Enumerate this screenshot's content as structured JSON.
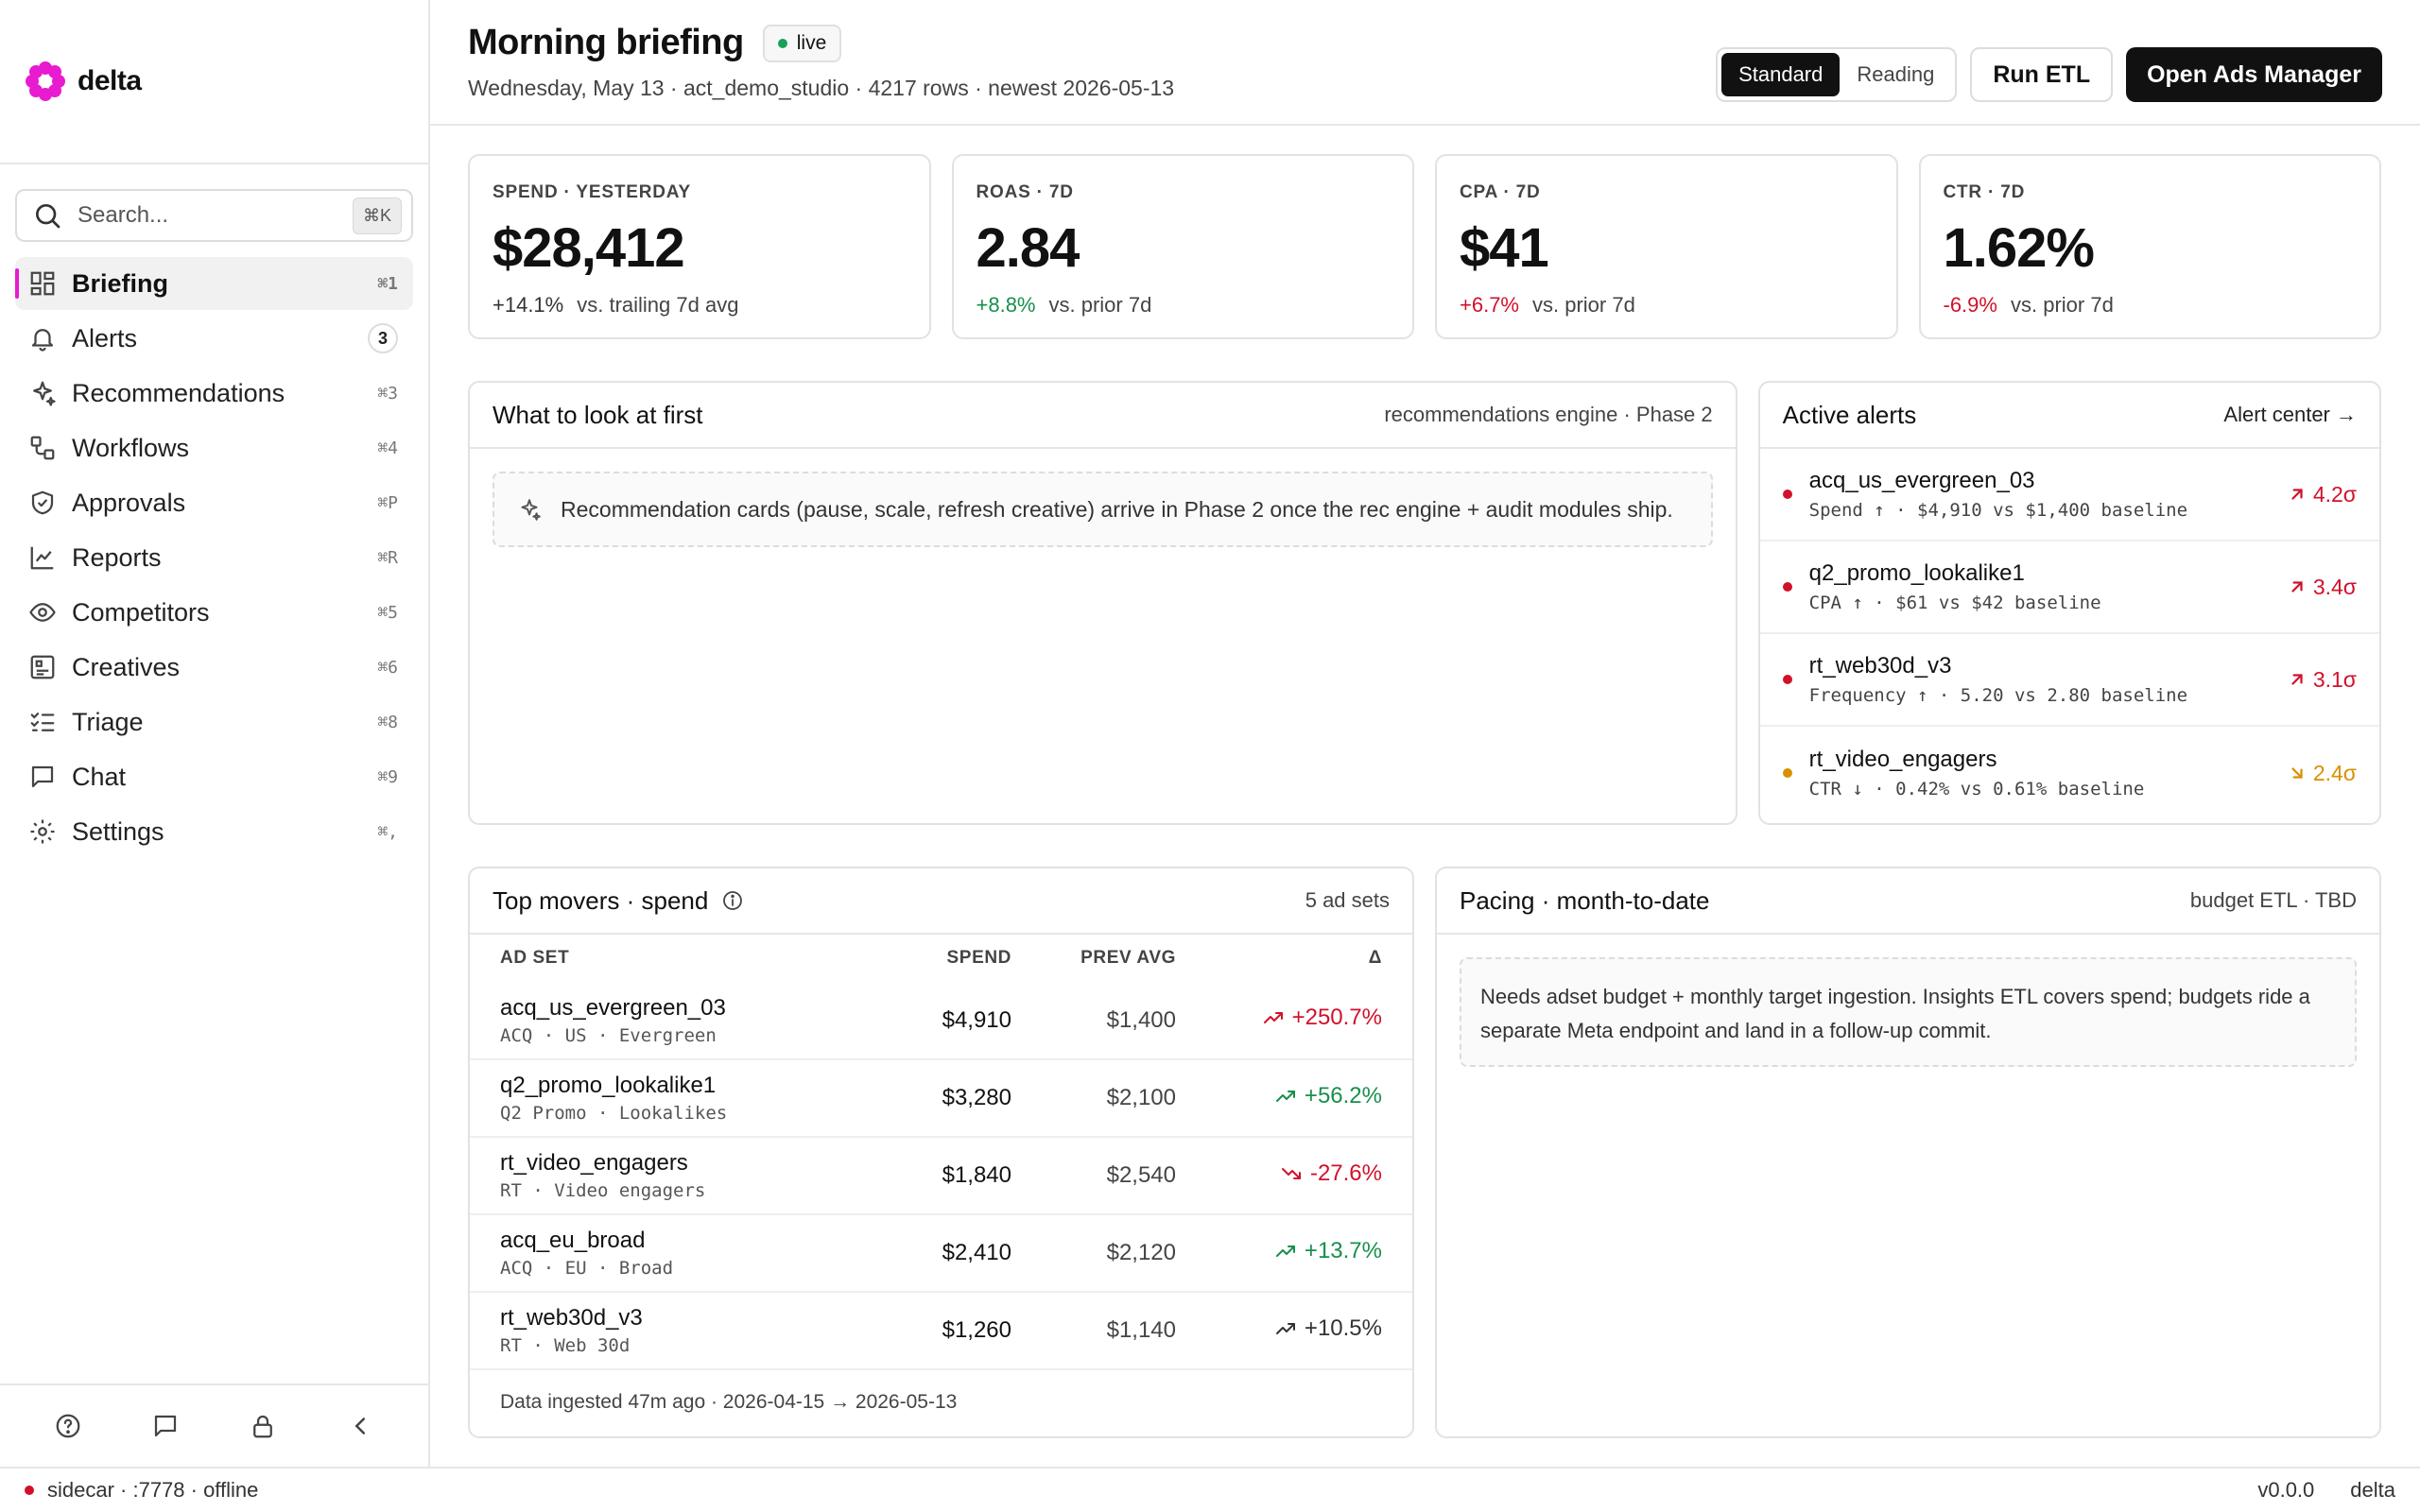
{
  "brand": {
    "name": "delta",
    "accent": "#e81bd0"
  },
  "search": {
    "placeholder": "Search...",
    "shortcut": "⌘K"
  },
  "sidebar": {
    "items": [
      {
        "label": "Briefing",
        "hint": "⌘1",
        "icon": "layout-grid-icon",
        "active": true
      },
      {
        "label": "Alerts",
        "badge": "3",
        "icon": "bell-icon"
      },
      {
        "label": "Recommendations",
        "hint": "⌘3",
        "icon": "sparkles-icon"
      },
      {
        "label": "Workflows",
        "hint": "⌘4",
        "icon": "workflow-icon"
      },
      {
        "label": "Approvals",
        "hint": "⌘P",
        "icon": "shield-check-icon"
      },
      {
        "label": "Reports",
        "hint": "⌘R",
        "icon": "line-chart-icon"
      },
      {
        "label": "Competitors",
        "hint": "⌘5",
        "icon": "eye-icon"
      },
      {
        "label": "Creatives",
        "hint": "⌘6",
        "icon": "image-icon"
      },
      {
        "label": "Triage",
        "hint": "⌘8",
        "icon": "list-checks-icon"
      },
      {
        "label": "Chat",
        "hint": "⌘9",
        "icon": "message-square-icon"
      },
      {
        "label": "Settings",
        "hint": "⌘,",
        "icon": "gear-icon"
      }
    ]
  },
  "header": {
    "title": "Morning briefing",
    "live": "live",
    "subtitle": "Wednesday, May 13 · act_demo_studio · 4217 rows · newest 2026-05-13",
    "view_standard": "Standard",
    "view_reading": "Reading",
    "run_etl": "Run ETL",
    "open_ads_manager": "Open Ads Manager"
  },
  "kpis": [
    {
      "label": "SPEND · YESTERDAY",
      "value": "$28,412",
      "delta": "+14.1%",
      "delta_tone": "muted",
      "compare": "vs. trailing 7d avg"
    },
    {
      "label": "ROAS · 7D",
      "value": "2.84",
      "delta": "+8.8%",
      "delta_tone": "pos",
      "compare": "vs. prior 7d"
    },
    {
      "label": "CPA · 7D",
      "value": "$41",
      "delta": "+6.7%",
      "delta_tone": "neg",
      "compare": "vs. prior 7d"
    },
    {
      "label": "CTR · 7D",
      "value": "1.62%",
      "delta": "-6.9%",
      "delta_tone": "neg",
      "compare": "vs. prior 7d"
    }
  ],
  "look_first": {
    "title": "What to look at first",
    "meta": "recommendations engine · Phase 2",
    "note": "Recommendation cards (pause, scale, refresh creative) arrive in Phase 2 once the rec engine + audit modules ship."
  },
  "alerts": {
    "title": "Active alerts",
    "link": "Alert center →",
    "items": [
      {
        "name": "acq_us_evergreen_03",
        "detail": "Spend ↑ · $4,910 vs $1,400 baseline",
        "sigma": "4.2σ",
        "tone": "neg",
        "dir": "up"
      },
      {
        "name": "q2_promo_lookalike1",
        "detail": "CPA ↑ · $61 vs $42 baseline",
        "sigma": "3.4σ",
        "tone": "neg",
        "dir": "up"
      },
      {
        "name": "rt_web30d_v3",
        "detail": "Frequency ↑ · 5.20 vs 2.80 baseline",
        "sigma": "3.1σ",
        "tone": "neg",
        "dir": "up"
      },
      {
        "name": "rt_video_engagers",
        "detail": "CTR ↓ · 0.42% vs 0.61% baseline",
        "sigma": "2.4σ",
        "tone": "amber",
        "dir": "down"
      }
    ]
  },
  "movers": {
    "title": "Top movers · spend",
    "meta": "5 ad sets",
    "columns": {
      "adset": "AD SET",
      "spend": "SPEND",
      "prev": "PREV AVG",
      "delta": "Δ"
    },
    "rows": [
      {
        "name": "acq_us_evergreen_03",
        "sub": "ACQ · US · Evergreen",
        "spend": "$4,910",
        "prev": "$1,400",
        "delta": "+250.7%",
        "tone": "neg",
        "trend": "up"
      },
      {
        "name": "q2_promo_lookalike1",
        "sub": "Q2 Promo · Lookalikes",
        "spend": "$3,280",
        "prev": "$2,100",
        "delta": "+56.2%",
        "tone": "pos",
        "trend": "up"
      },
      {
        "name": "rt_video_engagers",
        "sub": "RT · Video engagers",
        "spend": "$1,840",
        "prev": "$2,540",
        "delta": "-27.6%",
        "tone": "neg",
        "trend": "down"
      },
      {
        "name": "acq_eu_broad",
        "sub": "ACQ · EU · Broad",
        "spend": "$2,410",
        "prev": "$2,120",
        "delta": "+13.7%",
        "tone": "pos",
        "trend": "up"
      },
      {
        "name": "rt_web30d_v3",
        "sub": "RT · Web 30d",
        "spend": "$1,260",
        "prev": "$1,140",
        "delta": "+10.5%",
        "tone": "muted",
        "trend": "up"
      }
    ],
    "footer": "Data ingested 47m ago · 2026-04-15 → 2026-05-13"
  },
  "pacing": {
    "title": "Pacing · month-to-date",
    "meta": "budget ETL · TBD",
    "note": "Needs adset budget + monthly target ingestion. Insights ETL covers spend; budgets ride a separate Meta endpoint and land in a follow-up commit."
  },
  "status": {
    "left": "sidecar · :7778 · offline",
    "version": "v0.0.0",
    "app": "delta"
  }
}
